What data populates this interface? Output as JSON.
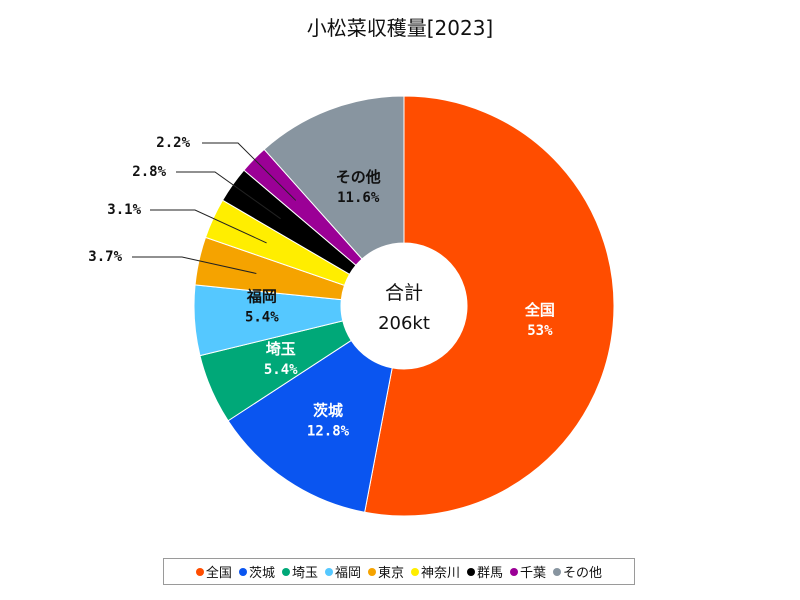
{
  "chart_data": {
    "type": "pie",
    "variant": "donut",
    "title": "小松菜収穫量[2023]",
    "center_label": {
      "line1": "合計",
      "line2": "206kt"
    },
    "slices": [
      {
        "name": "全国",
        "label": "全国",
        "value_label": "53%",
        "value": 53.0,
        "color": "#FF4D00",
        "label_color": "#ffffff",
        "label_pos": "inside"
      },
      {
        "name": "茨城",
        "label": "茨城",
        "value_label": "12.8%",
        "value": 12.8,
        "color": "#0A55F0",
        "label_color": "#ffffff",
        "label_pos": "inside"
      },
      {
        "name": "埼玉",
        "label": "埼玉",
        "value_label": "5.4%",
        "value": 5.4,
        "color": "#00A878",
        "label_color": "#ffffff",
        "label_pos": "inside"
      },
      {
        "name": "福岡",
        "label": "福岡",
        "value_label": "5.4%",
        "value": 5.4,
        "color": "#55C8FF",
        "label_color": "#111111",
        "label_pos": "inside"
      },
      {
        "name": "東京",
        "label": "",
        "value_label": "3.7%",
        "value": 3.7,
        "color": "#F5A300",
        "label_color": "#111111",
        "label_pos": "outside"
      },
      {
        "name": "神奈川",
        "label": "",
        "value_label": "3.1%",
        "value": 3.1,
        "color": "#FFEE00",
        "label_color": "#111111",
        "label_pos": "outside"
      },
      {
        "name": "群馬",
        "label": "",
        "value_label": "2.8%",
        "value": 2.8,
        "color": "#000000",
        "label_color": "#111111",
        "label_pos": "outside"
      },
      {
        "name": "千葉",
        "label": "",
        "value_label": "2.2%",
        "value": 2.2,
        "color": "#9B0096",
        "label_color": "#111111",
        "label_pos": "outside"
      },
      {
        "name": "その他",
        "label": "その他",
        "value_label": "11.6%",
        "value": 11.6,
        "color": "#8895A0",
        "label_color": "#111111",
        "label_pos": "inside"
      }
    ],
    "legend": [
      "全国",
      "茨城",
      "埼玉",
      "福岡",
      "東京",
      "神奈川",
      "群馬",
      "千葉",
      "その他"
    ],
    "legend_placement": "bottom"
  }
}
